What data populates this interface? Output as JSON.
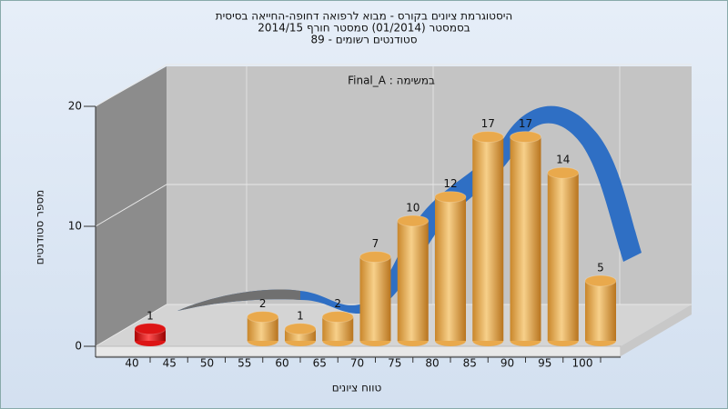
{
  "chart_data": {
    "type": "bar",
    "title": "היסטוגרמת ציונים בקורס - מבוא לרפואה דחופה-החייאה בסיסית",
    "subtitle": [
      "בסמסטר  (01/2014)  סמסטר חורף  2014/15",
      "סטודנטים רשומים - 89"
    ],
    "annotation": "Final_A : במשימה",
    "x_label": "טווח ציונים",
    "y_label": "מספר סטודנטים",
    "categories": [
      "40",
      "45",
      "50",
      "55",
      "60",
      "65",
      "70",
      "75",
      "80",
      "85",
      "90",
      "95",
      "100"
    ],
    "values": [
      1,
      null,
      null,
      2,
      1,
      2,
      7,
      10,
      12,
      17,
      17,
      14,
      5
    ],
    "colors": [
      "#dd1515",
      null,
      null,
      "#e9a94c",
      "#e9a94c",
      "#e9a94c",
      "#e9a94c",
      "#e9a94c",
      "#e9a94c",
      "#e9a94c",
      "#e9a94c",
      "#e9a94c",
      "#e9a94c"
    ],
    "ylim": [
      0,
      20
    ],
    "yticks": [
      0,
      10,
      20
    ],
    "grid": true
  }
}
